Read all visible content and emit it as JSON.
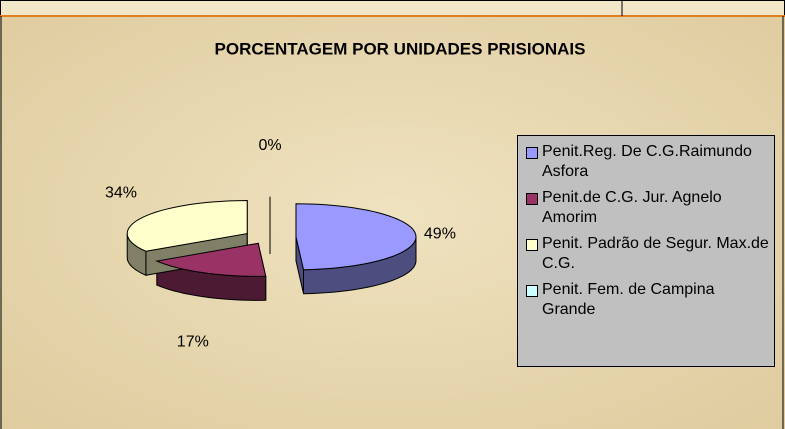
{
  "chart_data": {
    "type": "pie3d",
    "title": "PORCENTAGEM POR UNIDADES PRISIONAIS",
    "categories": [
      "Penit.Reg. De C.G.Raimundo Asfora",
      "Penit.de C.G. Jur. Agnelo Amorim",
      "Penit. Padrão de Segur. Max.de C.G.",
      "Penit. Fem. de Campina Grande"
    ],
    "values": [
      49,
      17,
      34,
      0
    ],
    "value_labels": [
      "49%",
      "17%",
      "34%",
      "0%"
    ],
    "colors": [
      "#9999ff",
      "#993366",
      "#ffffcc",
      "#ccffff"
    ],
    "legend": "right"
  }
}
